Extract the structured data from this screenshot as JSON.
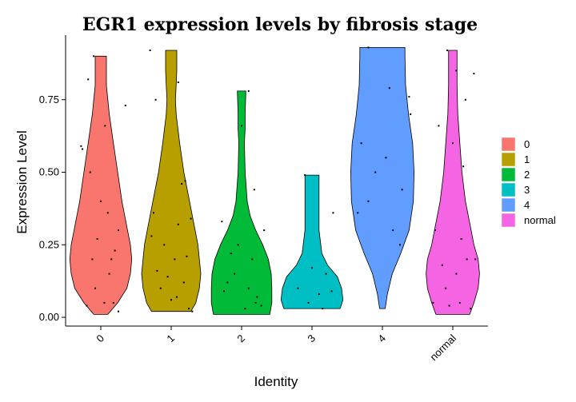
{
  "chart_data": {
    "type": "violin",
    "title": "EGR1 expression levels by fibrosis stage",
    "xlabel": "Identity",
    "ylabel": "Expression Level",
    "ylim": [
      -0.03,
      0.95
    ],
    "yticks": [
      "0.00",
      "0.25",
      "0.50",
      "0.75"
    ],
    "yticks_values": [
      0,
      0.25,
      0.5,
      0.75
    ],
    "legend_position": "right",
    "grid": false,
    "series": [
      {
        "name": "0",
        "color": "#F8766D",
        "min": 0.01,
        "max": 0.9,
        "profile": [
          [
            0.01,
            0.1
          ],
          [
            0.05,
            0.24
          ],
          [
            0.1,
            0.37
          ],
          [
            0.15,
            0.42
          ],
          [
            0.2,
            0.44
          ],
          [
            0.25,
            0.42
          ],
          [
            0.3,
            0.38
          ],
          [
            0.4,
            0.3
          ],
          [
            0.5,
            0.24
          ],
          [
            0.6,
            0.18
          ],
          [
            0.7,
            0.12
          ],
          [
            0.8,
            0.08
          ],
          [
            0.9,
            0.08
          ]
        ],
        "points": [
          [
            -0.28,
            0.59
          ],
          [
            -0.26,
            0.58
          ],
          [
            0.35,
            0.73
          ],
          [
            -0.18,
            0.82
          ],
          [
            0.2,
            0.23
          ],
          [
            0.25,
            0.3
          ],
          [
            -0.1,
            0.9
          ],
          [
            0.06,
            0.66
          ],
          [
            -0.05,
            0.27
          ],
          [
            -0.12,
            0.2
          ],
          [
            0.15,
            0.2
          ],
          [
            0.0,
            0.4
          ],
          [
            0.1,
            0.36
          ],
          [
            -0.2,
            0.04
          ],
          [
            -0.08,
            0.1
          ],
          [
            0.05,
            0.05
          ],
          [
            0.18,
            0.05
          ],
          [
            -0.15,
            0.5
          ],
          [
            0.12,
            0.15
          ],
          [
            0.25,
            0.02
          ]
        ]
      },
      {
        "name": "1",
        "color": "#B79F00",
        "min": 0.02,
        "max": 0.92,
        "profile": [
          [
            0.02,
            0.28
          ],
          [
            0.05,
            0.35
          ],
          [
            0.1,
            0.4
          ],
          [
            0.15,
            0.42
          ],
          [
            0.2,
            0.4
          ],
          [
            0.25,
            0.38
          ],
          [
            0.3,
            0.34
          ],
          [
            0.4,
            0.26
          ],
          [
            0.5,
            0.18
          ],
          [
            0.6,
            0.12
          ],
          [
            0.7,
            0.07
          ],
          [
            0.75,
            0.06
          ],
          [
            0.8,
            0.07
          ],
          [
            0.85,
            0.08
          ],
          [
            0.92,
            0.08
          ]
        ],
        "points": [
          [
            -0.3,
            0.92
          ],
          [
            0.1,
            0.81
          ],
          [
            -0.22,
            0.75
          ],
          [
            0.2,
            0.47
          ],
          [
            0.15,
            0.46
          ],
          [
            -0.1,
            0.25
          ],
          [
            0.05,
            0.2
          ],
          [
            -0.25,
            0.36
          ],
          [
            0.28,
            0.34
          ],
          [
            0.22,
            0.21
          ],
          [
            -0.15,
            0.1
          ],
          [
            0.08,
            0.07
          ],
          [
            -0.05,
            0.14
          ],
          [
            0.25,
            0.03
          ],
          [
            -0.28,
            0.28
          ],
          [
            0.1,
            0.32
          ],
          [
            0.0,
            0.06
          ],
          [
            0.18,
            0.12
          ],
          [
            -0.2,
            0.16
          ],
          [
            0.3,
            0.02
          ]
        ]
      },
      {
        "name": "2",
        "color": "#00BA38",
        "min": 0.01,
        "max": 0.78,
        "profile": [
          [
            0.01,
            0.4
          ],
          [
            0.05,
            0.43
          ],
          [
            0.1,
            0.43
          ],
          [
            0.15,
            0.42
          ],
          [
            0.2,
            0.38
          ],
          [
            0.25,
            0.3
          ],
          [
            0.3,
            0.2
          ],
          [
            0.35,
            0.12
          ],
          [
            0.4,
            0.08
          ],
          [
            0.5,
            0.05
          ],
          [
            0.6,
            0.04
          ],
          [
            0.65,
            0.05
          ],
          [
            0.7,
            0.05
          ],
          [
            0.78,
            0.06
          ]
        ],
        "points": [
          [
            0.1,
            0.78
          ],
          [
            0.0,
            0.66
          ],
          [
            0.18,
            0.44
          ],
          [
            -0.28,
            0.33
          ],
          [
            0.32,
            0.3
          ],
          [
            -0.05,
            0.25
          ],
          [
            0.15,
            0.2
          ],
          [
            -0.2,
            0.12
          ],
          [
            0.1,
            0.1
          ],
          [
            -0.1,
            0.15
          ],
          [
            0.2,
            0.05
          ],
          [
            -0.25,
            0.09
          ],
          [
            0.05,
            0.03
          ],
          [
            0.22,
            0.07
          ],
          [
            -0.15,
            0.22
          ],
          [
            0.28,
            0.04
          ]
        ]
      },
      {
        "name": "3",
        "color": "#00BFC4",
        "min": 0.03,
        "max": 0.49,
        "profile": [
          [
            0.03,
            0.4
          ],
          [
            0.06,
            0.44
          ],
          [
            0.1,
            0.42
          ],
          [
            0.14,
            0.36
          ],
          [
            0.18,
            0.22
          ],
          [
            0.22,
            0.14
          ],
          [
            0.3,
            0.1
          ],
          [
            0.4,
            0.1
          ],
          [
            0.49,
            0.1
          ]
        ],
        "points": [
          [
            0.3,
            0.36
          ],
          [
            -0.1,
            0.49
          ],
          [
            0.0,
            0.17
          ],
          [
            0.2,
            0.15
          ],
          [
            -0.2,
            0.1
          ],
          [
            0.1,
            0.08
          ],
          [
            0.28,
            0.09
          ],
          [
            -0.05,
            0.05
          ],
          [
            0.15,
            0.03
          ]
        ]
      },
      {
        "name": "4",
        "color": "#619CFF",
        "min": 0.03,
        "max": 0.93,
        "profile": [
          [
            0.03,
            0.04
          ],
          [
            0.08,
            0.07
          ],
          [
            0.15,
            0.14
          ],
          [
            0.22,
            0.26
          ],
          [
            0.3,
            0.38
          ],
          [
            0.4,
            0.44
          ],
          [
            0.5,
            0.45
          ],
          [
            0.6,
            0.43
          ],
          [
            0.7,
            0.37
          ],
          [
            0.8,
            0.33
          ],
          [
            0.9,
            0.32
          ],
          [
            0.93,
            0.32
          ]
        ],
        "points": [
          [
            -0.2,
            0.93
          ],
          [
            0.1,
            0.79
          ],
          [
            0.38,
            0.76
          ],
          [
            -0.35,
            0.36
          ],
          [
            0.28,
            0.44
          ],
          [
            -0.2,
            0.4
          ],
          [
            0.15,
            0.3
          ],
          [
            0.05,
            0.55
          ],
          [
            -0.1,
            0.5
          ],
          [
            0.25,
            0.25
          ],
          [
            0.4,
            0.7
          ],
          [
            -0.3,
            0.6
          ]
        ]
      },
      {
        "name": "normal",
        "color": "#F564E3",
        "min": 0.01,
        "max": 0.92,
        "profile": [
          [
            0.01,
            0.24
          ],
          [
            0.05,
            0.3
          ],
          [
            0.1,
            0.36
          ],
          [
            0.15,
            0.38
          ],
          [
            0.2,
            0.36
          ],
          [
            0.25,
            0.3
          ],
          [
            0.3,
            0.26
          ],
          [
            0.4,
            0.18
          ],
          [
            0.5,
            0.13
          ],
          [
            0.6,
            0.1
          ],
          [
            0.7,
            0.07
          ],
          [
            0.8,
            0.06
          ],
          [
            0.92,
            0.06
          ]
        ],
        "points": [
          [
            -0.08,
            0.92
          ],
          [
            0.18,
            0.75
          ],
          [
            0.05,
            0.85
          ],
          [
            0.3,
            0.84
          ],
          [
            -0.2,
            0.66
          ],
          [
            0.0,
            0.6
          ],
          [
            0.15,
            0.52
          ],
          [
            -0.25,
            0.3
          ],
          [
            0.2,
            0.2
          ],
          [
            -0.1,
            0.1
          ],
          [
            0.1,
            0.05
          ],
          [
            -0.28,
            0.05
          ],
          [
            0.25,
            0.03
          ],
          [
            0.05,
            0.15
          ],
          [
            -0.15,
            0.18
          ],
          [
            0.12,
            0.27
          ],
          [
            -0.05,
            0.04
          ],
          [
            0.32,
            0.2
          ]
        ]
      }
    ]
  }
}
